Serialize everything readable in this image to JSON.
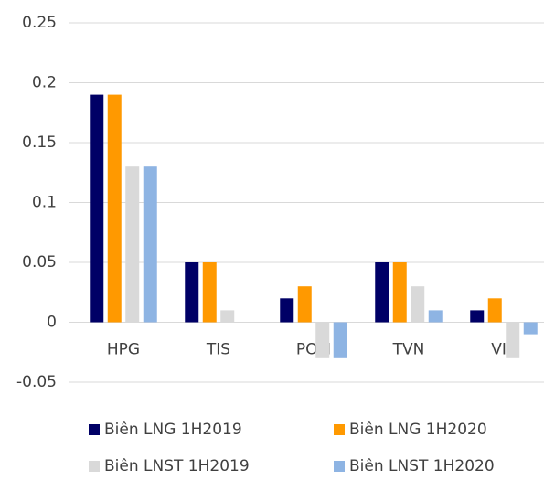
{
  "chart_data": {
    "type": "bar",
    "categories": [
      "HPG",
      "TIS",
      "POM",
      "TVN",
      "VIS"
    ],
    "series": [
      {
        "name": "Biên LNG 1H2019",
        "color": "#000066",
        "values": [
          0.19,
          0.05,
          0.02,
          0.05,
          0.01
        ]
      },
      {
        "name": "Biên LNG 1H2020",
        "color": "#ff9900",
        "values": [
          0.19,
          0.05,
          0.03,
          0.05,
          0.02
        ]
      },
      {
        "name": "Biên LNST 1H2019",
        "color": "#d9d9d9",
        "values": [
          0.13,
          0.01,
          -0.03,
          0.03,
          -0.03
        ]
      },
      {
        "name": "Biên LNST 1H2020",
        "color": "#8eb4e3",
        "values": [
          0.13,
          0,
          -0.03,
          0.01,
          -0.01
        ]
      }
    ],
    "ylim": [
      -0.05,
      0.25
    ],
    "yticks": [
      -0.05,
      0,
      0.05,
      0.1,
      0.15,
      0.2,
      0.25
    ],
    "grid": true,
    "legend": "bottom"
  }
}
